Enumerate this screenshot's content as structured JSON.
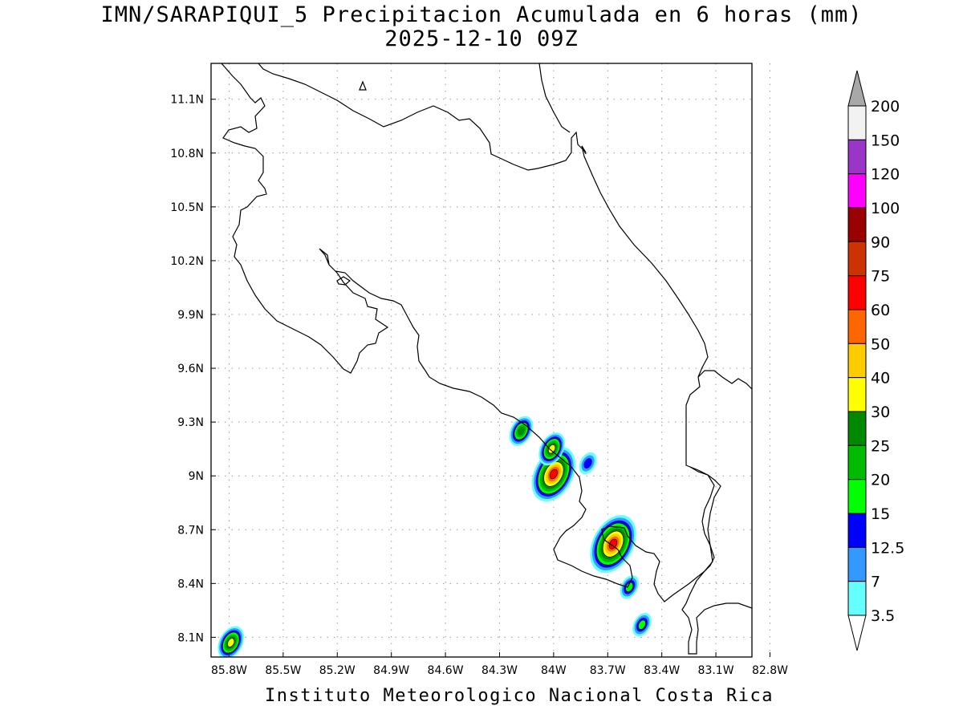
{
  "title": {
    "line1": "IMN/SARAPIQUI_5 Precipitacion Acumulada en 6 horas (mm)",
    "line2": "2025-12-10 09Z"
  },
  "footer": "Instituto Meteorologico Nacional Costa Rica",
  "map": {
    "lon_range": [
      -85.9,
      -82.9
    ],
    "lat_range": [
      7.99,
      11.3
    ],
    "lon_ticks": [
      {
        "value": -85.8,
        "label": "85.8W"
      },
      {
        "value": -85.5,
        "label": "85.5W"
      },
      {
        "value": -85.2,
        "label": "85.2W"
      },
      {
        "value": -84.9,
        "label": "84.9W"
      },
      {
        "value": -84.6,
        "label": "84.6W"
      },
      {
        "value": -84.3,
        "label": "84.3W"
      },
      {
        "value": -84.0,
        "label": "84W"
      },
      {
        "value": -83.7,
        "label": "83.7W"
      },
      {
        "value": -83.4,
        "label": "83.4W"
      },
      {
        "value": -83.1,
        "label": "83.1W"
      },
      {
        "value": -82.8,
        "label": "82.8W"
      }
    ],
    "lat_ticks": [
      {
        "value": 8.1,
        "label": "8.1N"
      },
      {
        "value": 8.4,
        "label": "8.4N"
      },
      {
        "value": 8.7,
        "label": "8.7N"
      },
      {
        "value": 9.0,
        "label": "9N"
      },
      {
        "value": 9.3,
        "label": "9.3N"
      },
      {
        "value": 9.6,
        "label": "9.6N"
      },
      {
        "value": 9.9,
        "label": "9.9N"
      },
      {
        "value": 10.2,
        "label": "10.2N"
      },
      {
        "value": 10.5,
        "label": "10.5N"
      },
      {
        "value": 10.8,
        "label": "10.8N"
      },
      {
        "value": 11.1,
        "label": "11.1N"
      }
    ],
    "grid": true,
    "colors": {
      "coastline": "#000000",
      "grid": "#999999"
    }
  },
  "precip_cells": [
    {
      "lon": -84.0,
      "lat": 9.01,
      "peak_mm": 65
    },
    {
      "lon": -84.01,
      "lat": 9.15,
      "peak_mm": 30
    },
    {
      "lon": -84.18,
      "lat": 9.25,
      "peak_mm": 25
    },
    {
      "lon": -83.67,
      "lat": 8.62,
      "peak_mm": 70
    },
    {
      "lon": -83.58,
      "lat": 8.38,
      "peak_mm": 15
    },
    {
      "lon": -83.51,
      "lat": 8.17,
      "peak_mm": 15
    },
    {
      "lon": -83.81,
      "lat": 9.07,
      "peak_mm": 12.5
    },
    {
      "lon": -85.79,
      "lat": 8.07,
      "peak_mm": 30
    }
  ],
  "colorbar": {
    "levels": [
      "200",
      "150",
      "120",
      "100",
      "90",
      "75",
      "60",
      "50",
      "40",
      "30",
      "25",
      "20",
      "15",
      "12.5",
      "7",
      "3.5"
    ],
    "colors": [
      "#a8a8a8",
      "#f2f2f2",
      "#9a35c8",
      "#ff00ff",
      "#990000",
      "#cc3300",
      "#ff0000",
      "#ff6600",
      "#ffcc00",
      "#ffff00",
      "#008800",
      "#00bb00",
      "#00ff00",
      "#0000ff",
      "#3399ff",
      "#66ffff",
      "#ffffff"
    ]
  }
}
